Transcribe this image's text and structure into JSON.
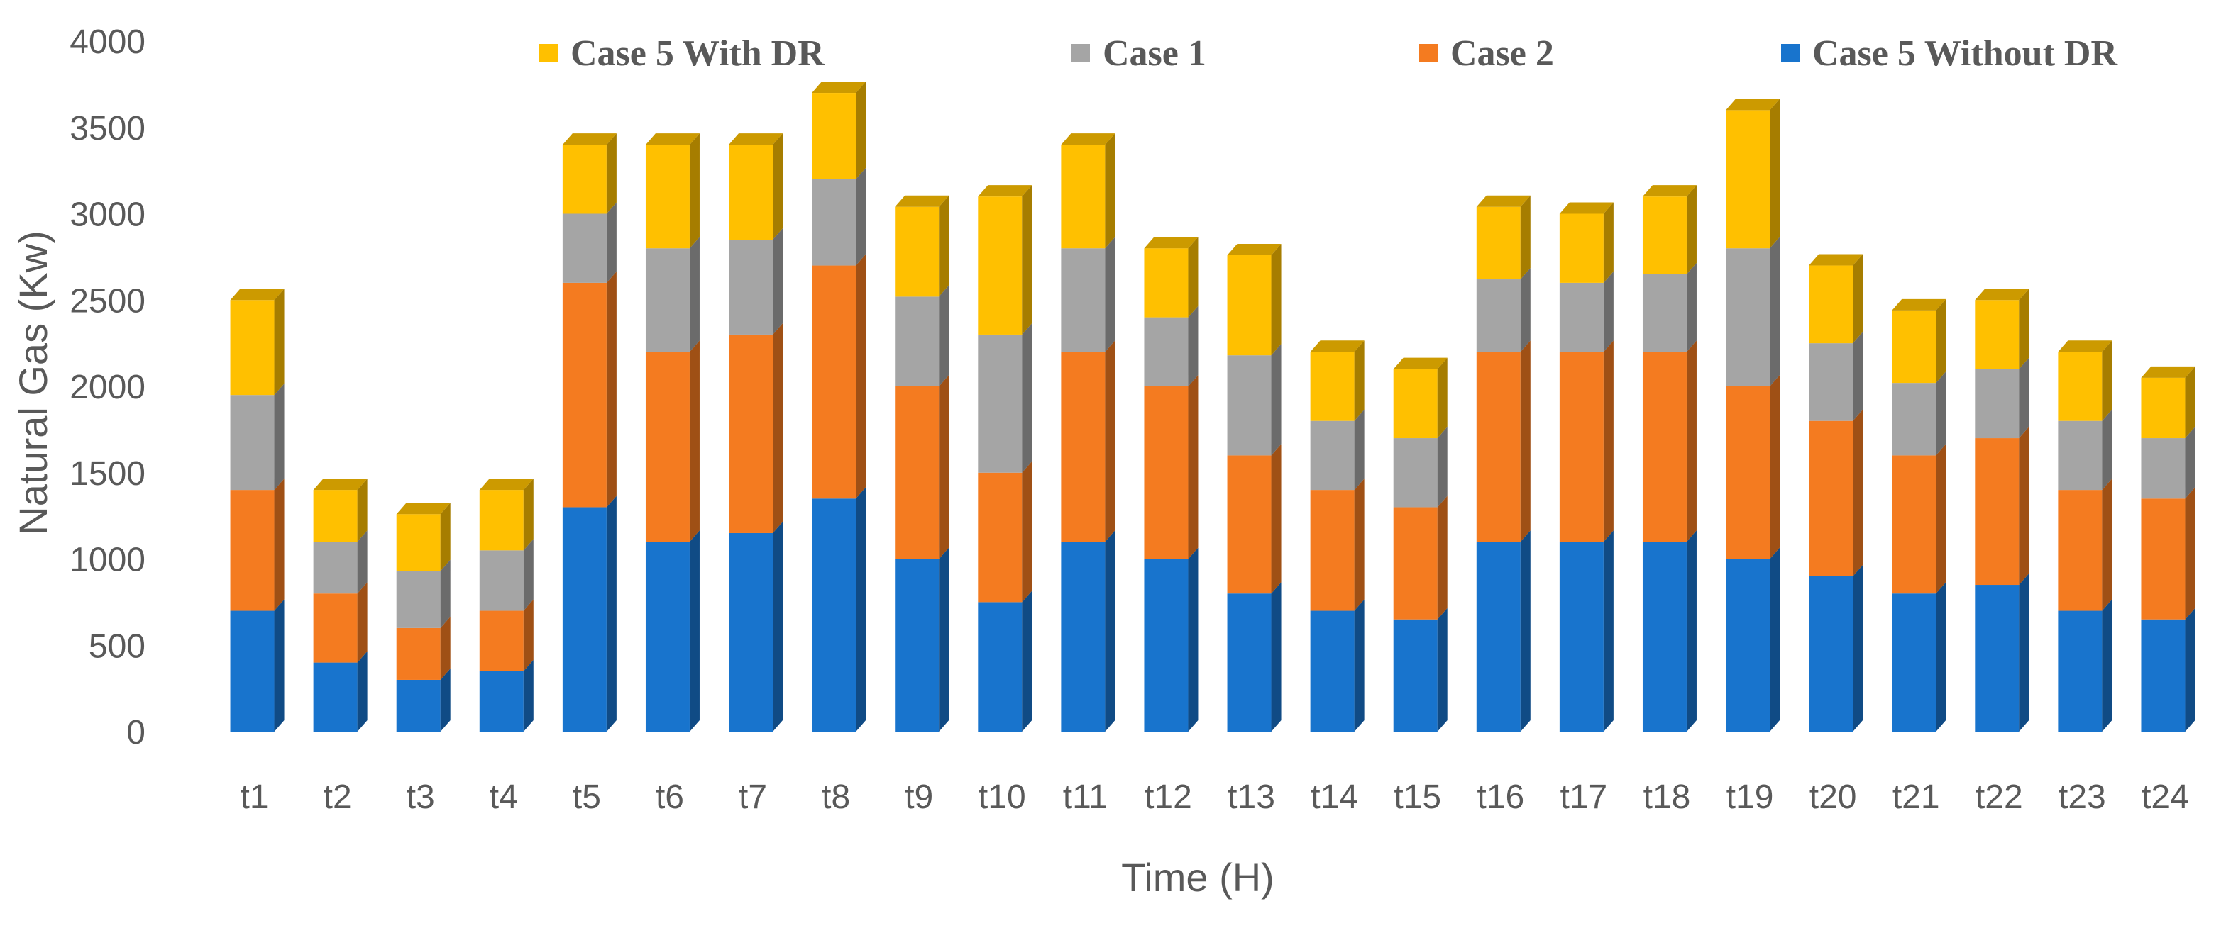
{
  "chart_data": {
    "type": "bar",
    "stacked": true,
    "style": "3d-stacked-column",
    "xlabel": "Time (H)",
    "ylabel": "Natural Gas (Kw)",
    "ylim": [
      0,
      4000
    ],
    "yticks": [
      0,
      500,
      1000,
      1500,
      2000,
      2500,
      3000,
      3500,
      4000
    ],
    "grid": false,
    "legend_position": "top",
    "categories": [
      "t1",
      "t2",
      "t3",
      "t4",
      "t5",
      "t6",
      "t7",
      "t8",
      "t9",
      "t10",
      "t11",
      "t12",
      "t13",
      "t14",
      "t15",
      "t16",
      "t17",
      "t18",
      "t19",
      "t20",
      "t21",
      "t22",
      "t23",
      "t24"
    ],
    "series": [
      {
        "name": "Case 5 Without DR",
        "color": "#1874CD",
        "values": [
          700,
          400,
          300,
          350,
          1300,
          1100,
          1150,
          1350,
          1000,
          750,
          1100,
          1000,
          800,
          700,
          650,
          1100,
          1100,
          1100,
          1000,
          900,
          800,
          850,
          700,
          650
        ]
      },
      {
        "name": "Case 2",
        "color": "#F47B20",
        "values": [
          700,
          400,
          300,
          350,
          1300,
          1100,
          1150,
          1350,
          1000,
          750,
          1100,
          1000,
          800,
          700,
          650,
          1100,
          1100,
          1100,
          1000,
          900,
          800,
          850,
          700,
          700
        ]
      },
      {
        "name": "Case 1",
        "color": "#A5A5A5",
        "values": [
          550,
          300,
          330,
          350,
          400,
          600,
          550,
          500,
          520,
          800,
          600,
          400,
          580,
          400,
          400,
          420,
          400,
          450,
          800,
          450,
          420,
          400,
          400,
          350
        ]
      },
      {
        "name": "Case 5 With DR",
        "color": "#FFC000",
        "values": [
          550,
          300,
          330,
          350,
          400,
          600,
          550,
          500,
          520,
          800,
          600,
          400,
          580,
          400,
          400,
          420,
          400,
          450,
          800,
          450,
          420,
          400,
          400,
          350
        ]
      }
    ],
    "legend_order": [
      "Case 5 With DR",
      "Case 1",
      "Case 2",
      "Case 5 Without DR"
    ]
  }
}
